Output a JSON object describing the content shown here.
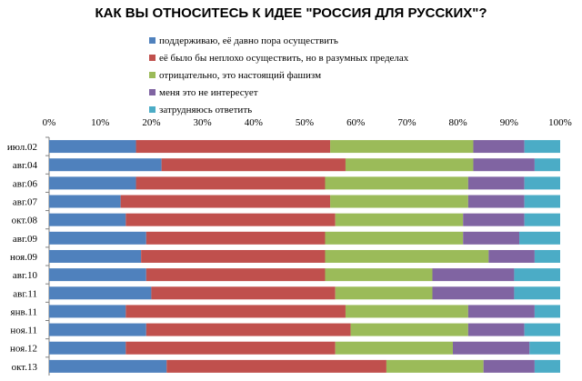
{
  "chart_data": {
    "type": "bar",
    "orientation": "horizontal",
    "stacked": "percent",
    "title": "КАК ВЫ ОТНОСИТЕСЬ К ИДЕЕ \"РОССИЯ ДЛЯ РУССКИХ\"?",
    "legend_position": "top",
    "xlim": [
      0,
      100
    ],
    "x_ticks": [
      "0%",
      "10%",
      "20%",
      "30%",
      "40%",
      "50%",
      "60%",
      "70%",
      "80%",
      "90%",
      "100%"
    ],
    "grid": false,
    "categories": [
      "июл.02",
      "авг.04",
      "авг.06",
      "авг.07",
      "окт.08",
      "авг.09",
      "ноя.09",
      "авг.10",
      "авг.11",
      "янв.11",
      "ноя.11",
      "ноя.12",
      "окт.13"
    ],
    "series": [
      {
        "name": "поддерживаю, её давно пора осуществить",
        "color": "#4F81BD",
        "values": [
          17,
          22,
          17,
          14,
          15,
          19,
          18,
          19,
          20,
          15,
          19,
          15,
          23
        ]
      },
      {
        "name": "её было бы неплохо осуществить, но в разумных пределах",
        "color": "#C0504D",
        "values": [
          38,
          36,
          37,
          41,
          41,
          35,
          36,
          35,
          36,
          43,
          40,
          41,
          43
        ]
      },
      {
        "name": "отрицательно, это настоящий фашизм",
        "color": "#9BBB59",
        "values": [
          28,
          25,
          28,
          27,
          25,
          27,
          32,
          21,
          19,
          24,
          23,
          23,
          19
        ]
      },
      {
        "name": "меня это не интересует",
        "color": "#8064A2",
        "values": [
          10,
          12,
          11,
          11,
          12,
          11,
          9,
          16,
          16,
          13,
          11,
          15,
          10
        ]
      },
      {
        "name": "затрудняюсь ответить",
        "color": "#4BACC6",
        "values": [
          7,
          5,
          7,
          7,
          7,
          8,
          5,
          9,
          9,
          5,
          7,
          6,
          5
        ]
      }
    ]
  }
}
